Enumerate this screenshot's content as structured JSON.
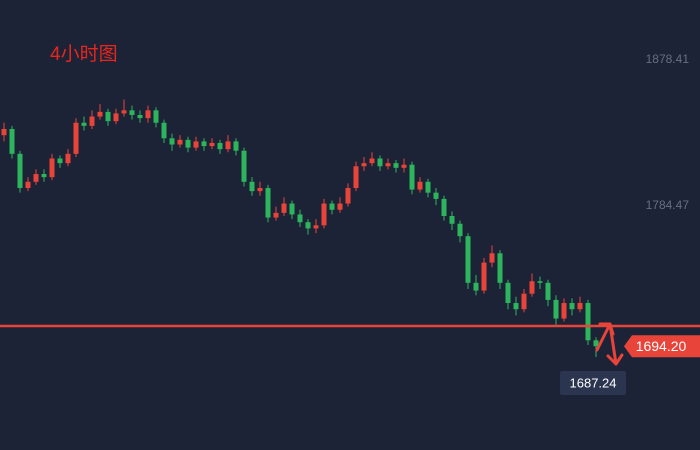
{
  "chart_data": {
    "type": "candlestick",
    "title": "4小时图",
    "open": [
      1830,
      1834,
      1818,
      1796,
      1800,
      1805,
      1803,
      1815,
      1812,
      1818,
      1838,
      1836,
      1842,
      1845,
      1839,
      1844,
      1846,
      1843,
      1841,
      1846,
      1838,
      1828,
      1824,
      1827,
      1822,
      1826,
      1823,
      1825,
      1821,
      1826,
      1820,
      1800,
      1794,
      1796,
      1777,
      1780,
      1786,
      1779,
      1774,
      1770,
      1772,
      1786,
      1782,
      1786,
      1796,
      1810,
      1812,
      1815,
      1810,
      1812,
      1809,
      1811,
      1795,
      1800,
      1793,
      1789,
      1778,
      1773,
      1765,
      1735,
      1730,
      1748,
      1754,
      1735,
      1722,
      1718,
      1728,
      1736,
      1735,
      1724,
      1712,
      1722,
      1718,
      1722,
      1698
    ],
    "high": [
      1838,
      1836,
      1820,
      1803,
      1808,
      1808,
      1818,
      1817,
      1821,
      1841,
      1842,
      1846,
      1850,
      1847,
      1847,
      1853,
      1849,
      1846,
      1849,
      1848,
      1840,
      1831,
      1830,
      1829,
      1829,
      1828,
      1828,
      1827,
      1830,
      1828,
      1822,
      1803,
      1800,
      1798,
      1784,
      1790,
      1788,
      1782,
      1776,
      1776,
      1789,
      1788,
      1790,
      1799,
      1813,
      1816,
      1819,
      1817,
      1815,
      1814,
      1815,
      1813,
      1803,
      1802,
      1796,
      1791,
      1781,
      1775,
      1767,
      1740,
      1751,
      1759,
      1756,
      1737,
      1726,
      1731,
      1741,
      1739,
      1737,
      1727,
      1725,
      1725,
      1726,
      1724,
      1700
    ],
    "low": [
      1826,
      1815,
      1793,
      1794,
      1798,
      1800,
      1801,
      1809,
      1810,
      1816,
      1833,
      1834,
      1840,
      1836,
      1837,
      1842,
      1840,
      1838,
      1838,
      1835,
      1825,
      1820,
      1822,
      1819,
      1820,
      1820,
      1821,
      1818,
      1819,
      1817,
      1797,
      1791,
      1791,
      1774,
      1775,
      1778,
      1776,
      1771,
      1766,
      1767,
      1770,
      1779,
      1780,
      1784,
      1794,
      1807,
      1810,
      1807,
      1808,
      1806,
      1806,
      1792,
      1793,
      1790,
      1785,
      1775,
      1769,
      1761,
      1731,
      1727,
      1728,
      1745,
      1731,
      1718,
      1714,
      1716,
      1726,
      1731,
      1720,
      1708,
      1710,
      1714,
      1716,
      1695,
      1687.24
    ],
    "close": [
      1834,
      1818,
      1796,
      1800,
      1805,
      1803,
      1815,
      1812,
      1818,
      1838,
      1836,
      1842,
      1845,
      1839,
      1844,
      1846,
      1843,
      1841,
      1846,
      1838,
      1828,
      1824,
      1827,
      1822,
      1826,
      1823,
      1825,
      1821,
      1826,
      1820,
      1800,
      1794,
      1796,
      1777,
      1780,
      1786,
      1779,
      1774,
      1770,
      1772,
      1786,
      1782,
      1786,
      1796,
      1810,
      1812,
      1815,
      1810,
      1812,
      1809,
      1811,
      1795,
      1800,
      1793,
      1789,
      1778,
      1773,
      1765,
      1735,
      1730,
      1748,
      1754,
      1735,
      1722,
      1718,
      1728,
      1736,
      1735,
      1724,
      1712,
      1722,
      1718,
      1722,
      1698,
      1694.2
    ],
    "up_color": "#e8443a",
    "down_color": "#2db55d",
    "ylim": [
      1627.4,
      1917.0
    ],
    "yticks": [
      1878.41,
      1784.47
    ],
    "last_price": {
      "value": 1694.2,
      "label": "1694.20"
    },
    "level_line": 1707.2
  }
}
